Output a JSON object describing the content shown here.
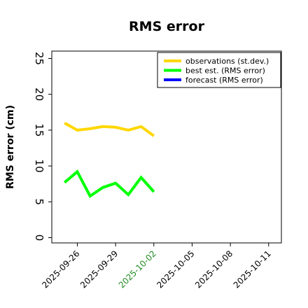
{
  "chart_data": {
    "type": "line",
    "title": "RMS error",
    "xlabel": "",
    "ylabel": "RMS error (cm)",
    "ylim": [
      0,
      25
    ],
    "yticks": [
      "0",
      "5",
      "10",
      "15",
      "20",
      "25"
    ],
    "xlim": [
      "2025-09-24",
      "2025-10-12"
    ],
    "xticks": [
      "2025-09-26",
      "2025-09-29",
      "2025-10-02",
      "2025-10-05",
      "2025-10-08",
      "2025-10-11"
    ],
    "highlight_tick": "2025-10-02",
    "highlight_color": "#228B22",
    "grid": false,
    "legend_position": "top-right",
    "series": [
      {
        "name": "observations (st.dev.)",
        "color": "#FFD700",
        "x": [
          "2025-09-25",
          "2025-09-26",
          "2025-09-27",
          "2025-09-28",
          "2025-09-29",
          "2025-09-30",
          "2025-10-01",
          "2025-10-02"
        ],
        "y": [
          16.0,
          15.0,
          15.2,
          15.5,
          15.4,
          15.0,
          15.5,
          14.2
        ]
      },
      {
        "name": "best est. (RMS error)",
        "color": "#00FF00",
        "x": [
          "2025-09-25",
          "2025-09-26",
          "2025-09-27",
          "2025-09-28",
          "2025-09-29",
          "2025-09-30",
          "2025-10-01",
          "2025-10-02"
        ],
        "y": [
          7.7,
          9.2,
          5.8,
          7.0,
          7.6,
          6.0,
          8.4,
          6.4
        ]
      },
      {
        "name": "forecast (RMS error)",
        "color": "#0000FF",
        "x": [],
        "y": []
      }
    ]
  }
}
